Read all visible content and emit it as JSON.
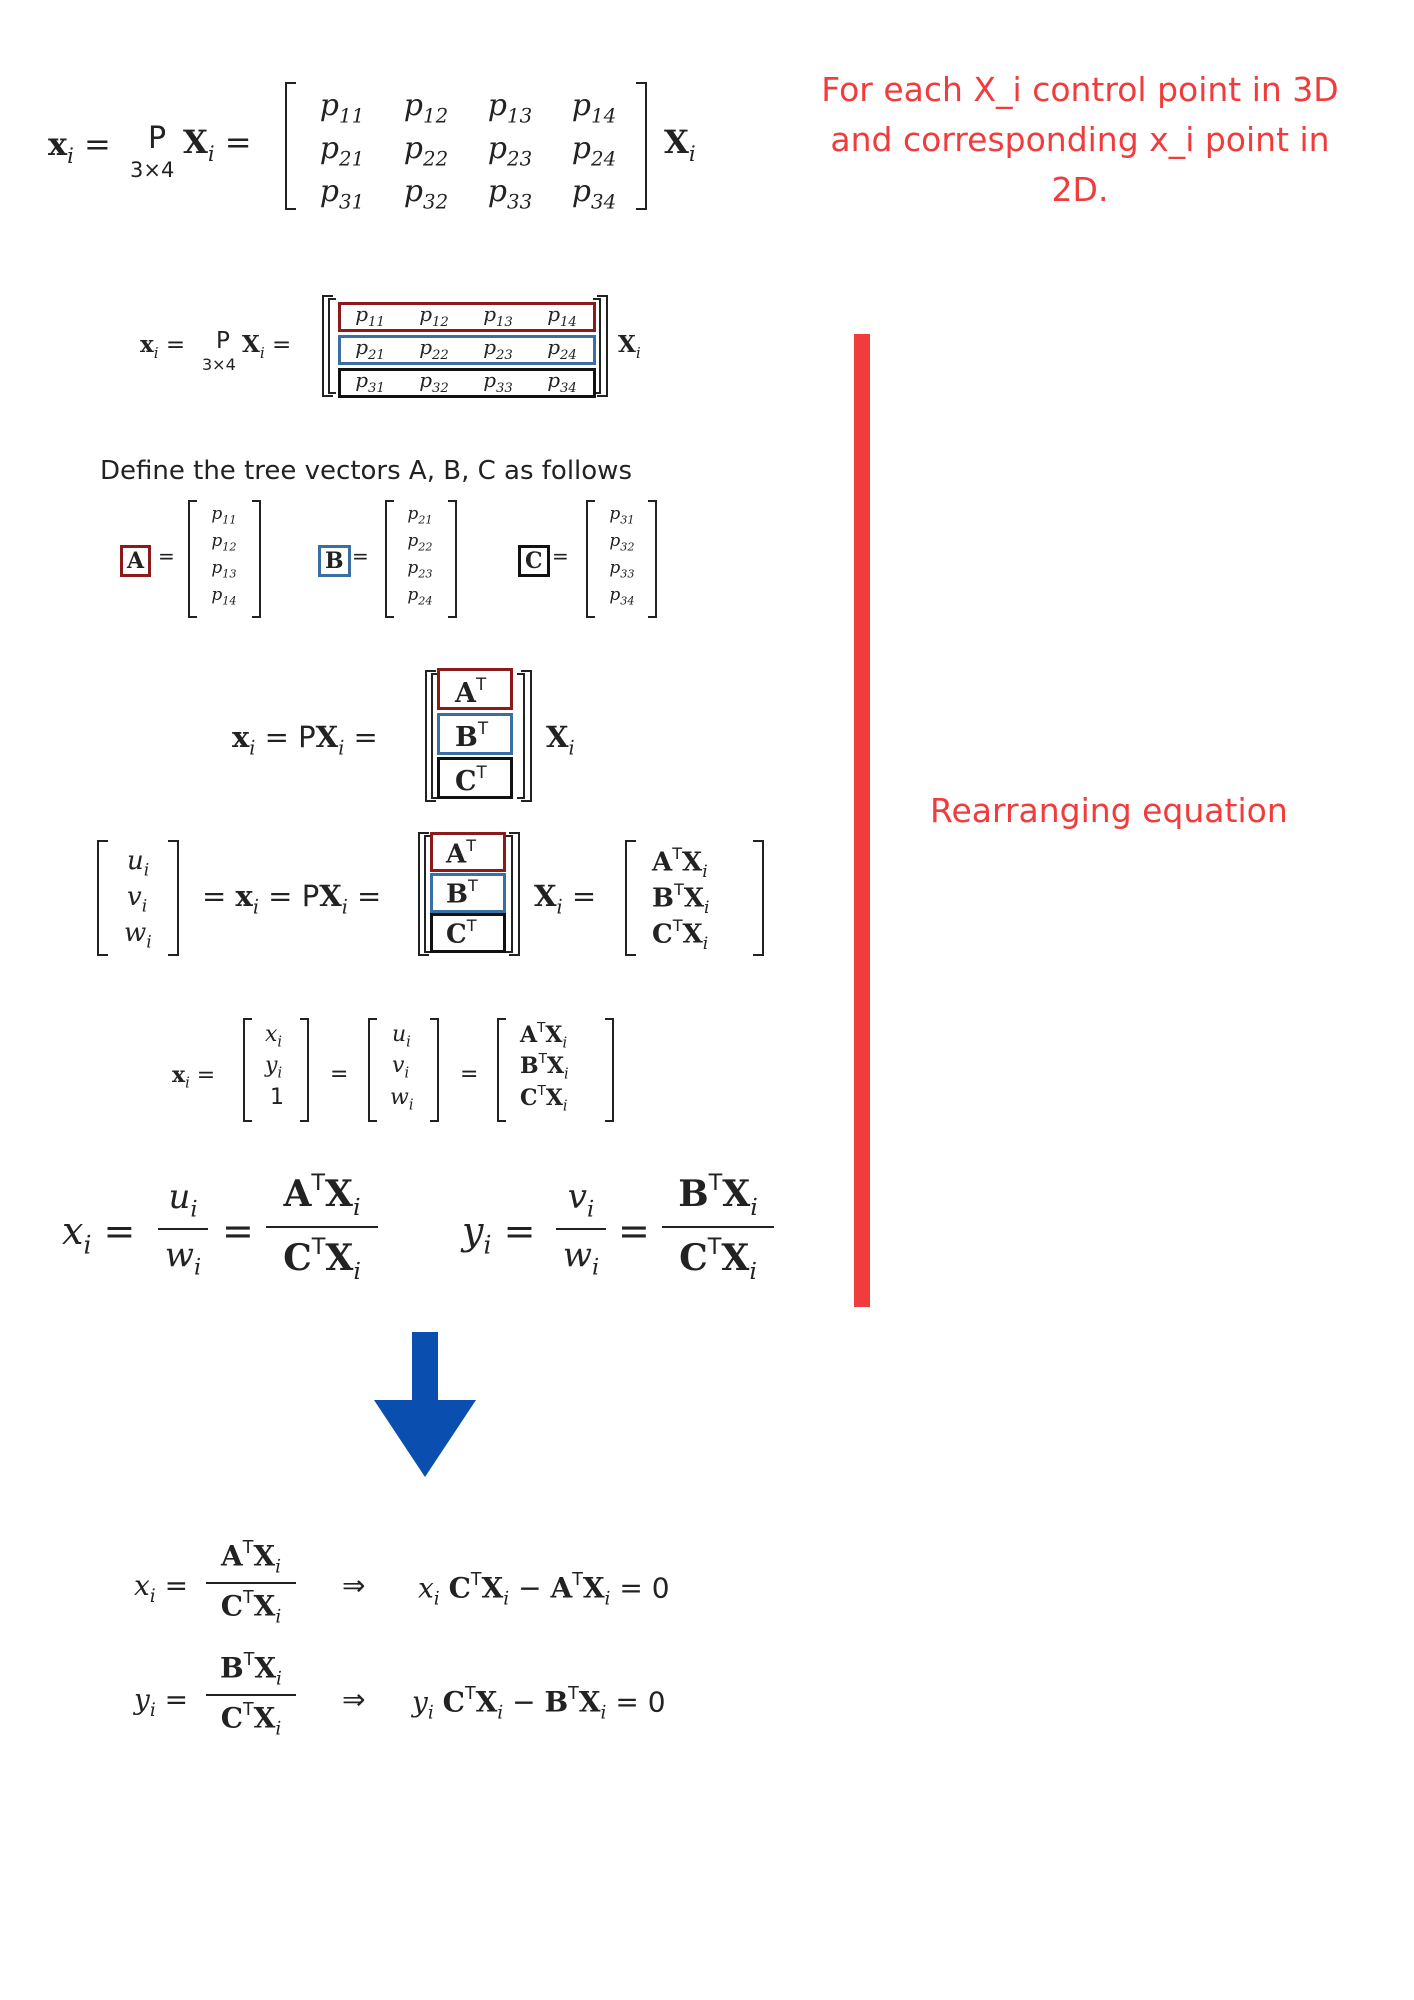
{
  "notes": {
    "top_right": "For each X_i control point in 3D and corresponding x_i point in 2D.",
    "rearranging": "Rearranging equation"
  },
  "caption": "Define the tree vectors A, B, C as follows",
  "labels": {
    "A": "A",
    "B": "B",
    "C": "C"
  },
  "colors": {
    "annotation_red": "#f03c3c",
    "box_red": "#8b1a1a",
    "box_blue": "#3a6ea5",
    "arrow_blue": "#0a4fb0"
  },
  "matrix_P": [
    [
      "p11",
      "p12",
      "p13",
      "p14"
    ],
    [
      "p21",
      "p22",
      "p23",
      "p24"
    ],
    [
      "p31",
      "p32",
      "p33",
      "p34"
    ]
  ],
  "vector_A": [
    "p11",
    "p12",
    "p13",
    "p14"
  ],
  "vector_B": [
    "p21",
    "p22",
    "p23",
    "p24"
  ],
  "vector_C": [
    "p31",
    "p32",
    "p33",
    "p34"
  ],
  "dim": "3×4"
}
